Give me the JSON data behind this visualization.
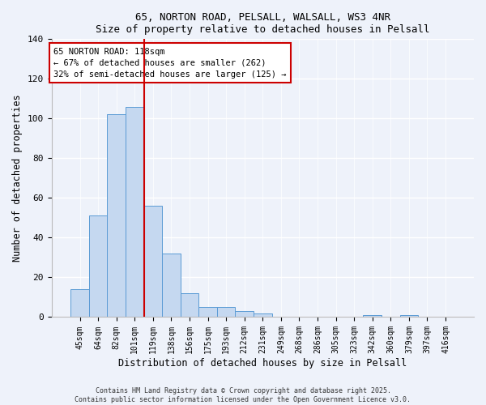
{
  "title1": "65, NORTON ROAD, PELSALL, WALSALL, WS3 4NR",
  "title2": "Size of property relative to detached houses in Pelsall",
  "xlabel": "Distribution of detached houses by size in Pelsall",
  "ylabel": "Number of detached properties",
  "bar_labels": [
    "45sqm",
    "64sqm",
    "82sqm",
    "101sqm",
    "119sqm",
    "138sqm",
    "156sqm",
    "175sqm",
    "193sqm",
    "212sqm",
    "231sqm",
    "249sqm",
    "268sqm",
    "286sqm",
    "305sqm",
    "323sqm",
    "342sqm",
    "360sqm",
    "379sqm",
    "397sqm",
    "416sqm"
  ],
  "bar_values": [
    14,
    51,
    102,
    106,
    56,
    32,
    12,
    5,
    5,
    3,
    2,
    0,
    0,
    0,
    0,
    0,
    1,
    0,
    1,
    0,
    0
  ],
  "bar_color": "#c5d8f0",
  "bar_edgecolor": "#5b9bd5",
  "vline_color": "#cc0000",
  "vline_pos": 3.5,
  "annotation_title": "65 NORTON ROAD: 118sqm",
  "annotation_line1": "← 67% of detached houses are smaller (262)",
  "annotation_line2": "32% of semi-detached houses are larger (125) →",
  "ylim": [
    0,
    140
  ],
  "yticks": [
    0,
    20,
    40,
    60,
    80,
    100,
    120,
    140
  ],
  "footer1": "Contains HM Land Registry data © Crown copyright and database right 2025.",
  "footer2": "Contains public sector information licensed under the Open Government Licence v3.0.",
  "bg_color": "#eef2fa",
  "grid_color": "#d8e4f0",
  "plot_bg": "#eef2fa"
}
